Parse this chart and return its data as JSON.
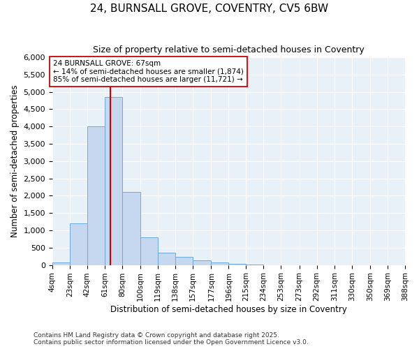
{
  "title_line1": "24, BURNSALL GROVE, COVENTRY, CV5 6BW",
  "title_line2": "Size of property relative to semi-detached houses in Coventry",
  "xlabel": "Distribution of semi-detached houses by size in Coventry",
  "ylabel": "Number of semi-detached properties",
  "bins": [
    4,
    23,
    42,
    61,
    80,
    100,
    119,
    138,
    157,
    177,
    196,
    215,
    234,
    253,
    273,
    292,
    311,
    330,
    350,
    369,
    388
  ],
  "counts": [
    75,
    1200,
    4000,
    4850,
    2100,
    800,
    350,
    230,
    130,
    75,
    30,
    10,
    0,
    0,
    0,
    0,
    0,
    0,
    0,
    0
  ],
  "bar_color": "#c5d8f0",
  "bar_edge_color": "#6fa8dc",
  "property_size": 67,
  "property_line_color": "#cc0000",
  "annotation_text": "24 BURNSALL GROVE: 67sqm\n← 14% of semi-detached houses are smaller (1,874)\n85% of semi-detached houses are larger (11,721) →",
  "annotation_box_color": "#ffffff",
  "annotation_box_edge": "#cc0000",
  "ylim": [
    0,
    6000
  ],
  "yticks": [
    0,
    500,
    1000,
    1500,
    2000,
    2500,
    3000,
    3500,
    4000,
    4500,
    5000,
    5500,
    6000
  ],
  "tick_labels": [
    "4sqm",
    "23sqm",
    "42sqm",
    "61sqm",
    "80sqm",
    "100sqm",
    "119sqm",
    "138sqm",
    "157sqm",
    "177sqm",
    "196sqm",
    "215sqm",
    "234sqm",
    "253sqm",
    "273sqm",
    "292sqm",
    "311sqm",
    "330sqm",
    "350sqm",
    "369sqm",
    "388sqm"
  ],
  "footer_text": "Contains HM Land Registry data © Crown copyright and database right 2025.\nContains public sector information licensed under the Open Government Licence v3.0.",
  "fig_bg_color": "#ffffff",
  "plot_bg_color": "#e8f0f8"
}
